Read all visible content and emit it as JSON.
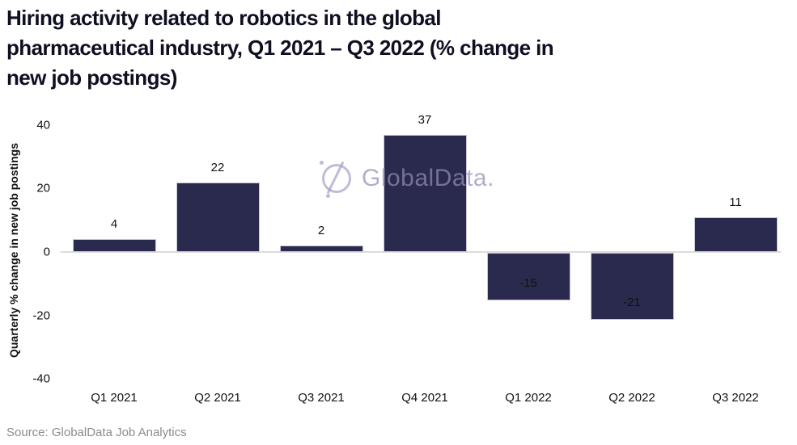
{
  "header": {
    "title": "Hiring activity related to robotics in the global pharmaceutical industry, Q1 2021 – Q3 2022 (% change in new job postings)",
    "title_lines": [
      "Hiring activity related to robotics in the global",
      "pharmaceutical industry, Q1 2021 – Q3 2022 (% change in",
      "new job postings)"
    ]
  },
  "chart_data": {
    "type": "bar",
    "title": "Hiring activity related to robotics in the global pharmaceutical industry, Q1 2021 – Q3 2022 (% change in new job postings)",
    "categories": [
      "Q1 2021",
      "Q2 2021",
      "Q3 2021",
      "Q4 2021",
      "Q1 2022",
      "Q2 2022",
      "Q3 2022"
    ],
    "values": [
      4,
      22,
      2,
      37,
      -15,
      -21,
      11
    ],
    "xlabel": "",
    "ylabel": "Quarterly % change in new job postings",
    "ylim": [
      -40,
      40
    ],
    "yticks": [
      40,
      20,
      0,
      -20,
      -40
    ],
    "grid": false,
    "legend": "none",
    "bar_color": "#2a2a4e",
    "bar_border_color": "#c9c7d6",
    "label_color": "#111111",
    "zero_line_color": "#dcdcdc"
  },
  "watermark": {
    "text": "GlobalData.",
    "icon": "globaldata-logo-icon",
    "color": "#a49cc3"
  },
  "footer": {
    "source": "Source: GlobalData Job Analytics"
  }
}
